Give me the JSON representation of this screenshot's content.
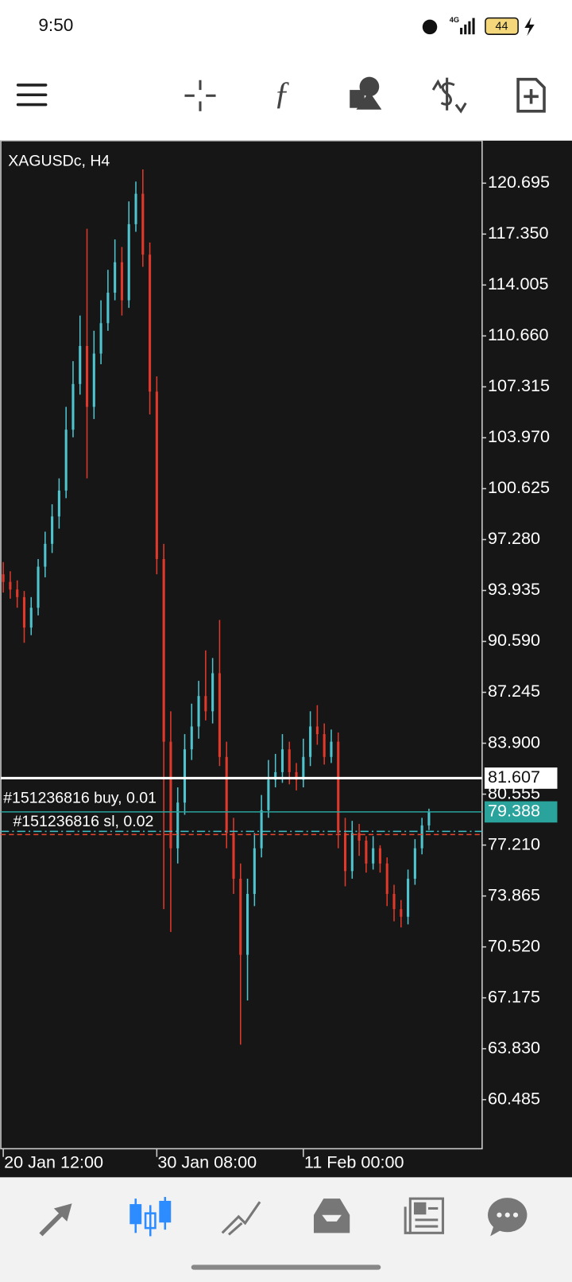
{
  "status_bar": {
    "time": "9:50",
    "network": "4G",
    "battery": "44"
  },
  "chart_data": {
    "type": "candlestick",
    "title": "XAGUSDc, H4",
    "up_color": "#4fc4cf",
    "down_color": "#e0392b",
    "open": [
      95.0,
      94.5,
      94.0,
      93.5,
      91.5,
      92.8,
      95.5,
      97.0,
      98.8,
      100.5,
      104.5,
      107.5,
      110.0,
      106.0,
      109.5,
      111.5,
      113.5,
      115.5,
      113.0,
      118.0,
      120.0,
      116.0,
      107.0,
      96.0,
      84.0,
      77.0,
      80.0,
      83.5,
      85.0,
      87.0,
      86.0,
      88.5,
      83.0,
      78.0,
      75.0,
      70.0,
      74.0,
      77.0,
      79.5,
      81.5,
      82.0,
      83.5,
      82.0,
      81.5,
      83.0,
      85.0,
      84.5,
      83.0,
      84.0,
      78.0,
      75.5,
      78.0,
      77.5,
      76.0,
      77.0,
      76.0,
      74.0,
      73.0,
      72.5,
      75.0,
      77.0,
      78.5
    ],
    "high": [
      95.8,
      95.2,
      94.6,
      93.9,
      93.5,
      96.0,
      97.8,
      99.6,
      101.3,
      106.0,
      109.0,
      112.0,
      117.7,
      111.0,
      113.0,
      115.0,
      117.0,
      116.5,
      119.5,
      120.8,
      121.6,
      116.8,
      108.0,
      97.0,
      86.0,
      81.0,
      84.5,
      86.5,
      88.0,
      90.0,
      89.5,
      92.0,
      84.0,
      79.0,
      76.0,
      75.0,
      78.0,
      80.5,
      82.8,
      83.2,
      84.5,
      84.0,
      82.6,
      84.2,
      86.0,
      86.4,
      85.2,
      84.8,
      84.6,
      79.0,
      78.8,
      78.6,
      77.8,
      77.8,
      77.2,
      76.4,
      74.6,
      73.6,
      75.6,
      77.6,
      79.0,
      79.6
    ],
    "low": [
      93.8,
      93.4,
      92.8,
      90.5,
      91.0,
      92.3,
      94.8,
      96.4,
      98.0,
      100.0,
      104.0,
      106.8,
      101.3,
      105.2,
      108.8,
      111.0,
      113.0,
      112.0,
      112.5,
      117.5,
      115.2,
      105.5,
      95.0,
      73.0,
      71.5,
      76.0,
      79.2,
      82.8,
      84.2,
      85.4,
      85.2,
      82.4,
      77.0,
      74.0,
      64.1,
      67.0,
      73.2,
      76.4,
      79.0,
      81.0,
      81.3,
      81.2,
      80.8,
      81.0,
      82.4,
      83.8,
      82.5,
      82.6,
      77.0,
      74.5,
      75.0,
      76.5,
      75.4,
      75.6,
      75.4,
      73.2,
      72.2,
      71.8,
      72.0,
      74.6,
      76.6,
      78.2
    ],
    "close": [
      94.5,
      94.0,
      93.5,
      91.5,
      92.8,
      95.5,
      97.0,
      98.8,
      100.5,
      104.5,
      107.5,
      110.0,
      106.0,
      109.5,
      111.5,
      113.5,
      115.5,
      113.0,
      118.0,
      120.0,
      116.0,
      107.0,
      96.0,
      84.0,
      77.0,
      80.0,
      83.5,
      85.0,
      87.0,
      86.0,
      88.5,
      83.0,
      78.0,
      75.0,
      70.0,
      74.0,
      77.0,
      79.5,
      81.5,
      82.0,
      83.5,
      82.0,
      81.5,
      83.0,
      85.0,
      84.5,
      83.0,
      84.0,
      78.0,
      75.5,
      78.0,
      77.5,
      76.0,
      77.0,
      76.0,
      74.0,
      73.0,
      72.5,
      75.0,
      77.0,
      78.5,
      79.388
    ],
    "ylim": [
      57.26,
      123.49
    ],
    "yticks": [
      120.695,
      {
        "value": 117.35,
        "label": "117.350"
      },
      114.005,
      {
        "value": 110.66,
        "label": "110.660"
      },
      107.315,
      {
        "value": 103.97,
        "label": "103.970"
      },
      100.625,
      {
        "value": 97.28,
        "label": "97.280"
      },
      93.935,
      {
        "value": 90.59,
        "label": "90.590"
      },
      87.245,
      {
        "value": 83.9,
        "label": "83.900"
      },
      80.555,
      {
        "value": 77.21,
        "label": "77.210"
      },
      73.865,
      {
        "value": 70.52,
        "label": "70.520"
      },
      67.175,
      {
        "value": 63.83,
        "label": "63.830"
      },
      60.485
    ],
    "xticks": [
      {
        "value": 0,
        "label": "20 Jan 12:00"
      },
      {
        "value": 22,
        "label": "30 Jan 08:00"
      },
      {
        "value": 43,
        "label": "11 Feb 00:00"
      }
    ],
    "bid": {
      "value": 81.607,
      "color": "#ffffff"
    },
    "ask": {
      "value": 79.388,
      "color": "#2aa39c"
    },
    "orders": [
      {
        "label": "#151236816 buy, 0.01",
        "value": 78.11,
        "color": "#3fc1c9"
      },
      {
        "label": "#151236816 sl, 0.02",
        "value": 77.9,
        "color": "#e8452c"
      }
    ]
  }
}
